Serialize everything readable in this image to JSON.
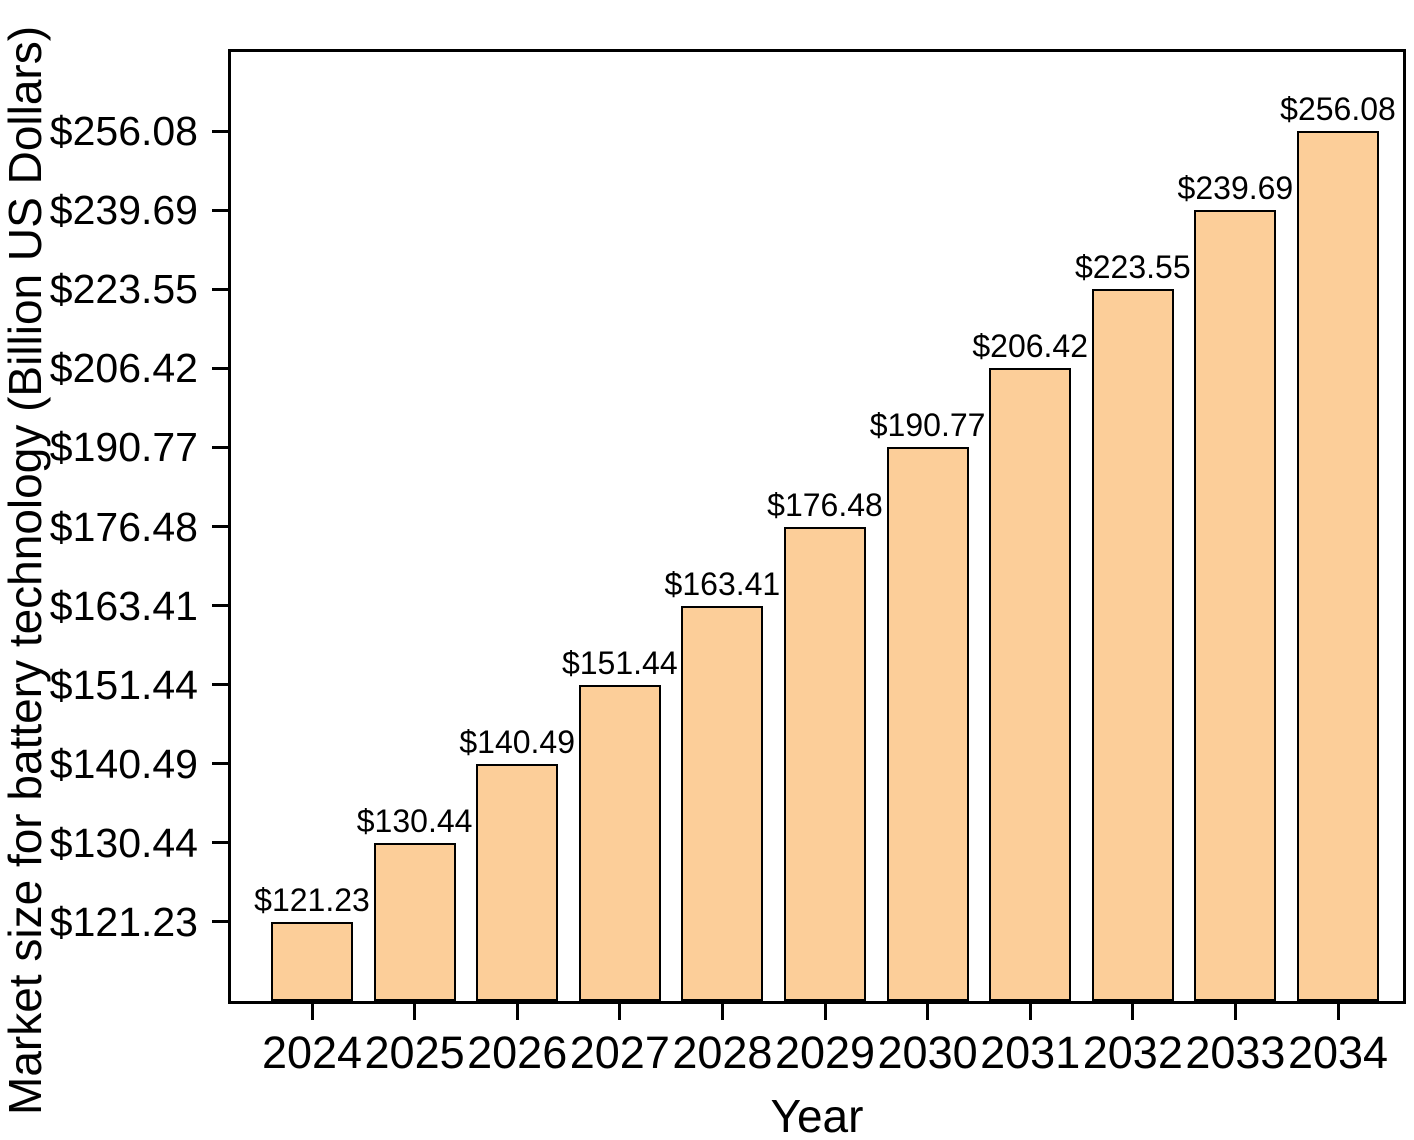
{
  "chart_data": {
    "type": "bar",
    "title": "",
    "xlabel": "Year",
    "ylabel": "Market size for battery technology (Billion US Dollars)",
    "categories": [
      "2024",
      "2025",
      "2026",
      "2027",
      "2028",
      "2029",
      "2030",
      "2031",
      "2032",
      "2033",
      "2034"
    ],
    "values": [
      121.23,
      130.44,
      140.49,
      151.44,
      163.41,
      176.48,
      190.77,
      206.42,
      223.55,
      239.69,
      256.08
    ],
    "bar_labels": [
      "$121.23",
      "$130.44",
      "$140.49",
      "$151.44",
      "$163.41",
      "$176.48",
      "$190.77",
      "$206.42",
      "$223.55",
      "$239.69",
      "$256.08"
    ],
    "ytick_labels": [
      "$121.23",
      "$130.44",
      "$140.49",
      "$151.44",
      "$163.41",
      "$176.48",
      "$190.77",
      "$206.42",
      "$223.55",
      "$239.69",
      "$256.08"
    ],
    "value_prefix": "$",
    "legend": null,
    "grid": false,
    "layout": {
      "axis_scale": "rank-uniform: one equally spaced tick per bar value, bar top aligned to its tick",
      "intervals_total": 12,
      "frame": "full box, ticks outside"
    },
    "colors": {
      "bar_fill": "#FCCE99",
      "bar_border": "#000000",
      "axis": "#000000",
      "text": "#000000",
      "background": "#FFFFFF"
    }
  }
}
